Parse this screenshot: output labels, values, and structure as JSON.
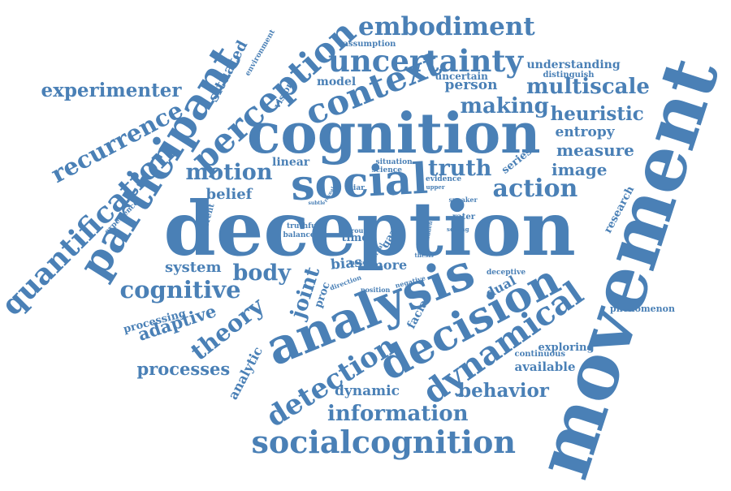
{
  "color": "#4a80b6",
  "words": [
    "deception",
    "cognition",
    "movement",
    "analysis",
    "social",
    "decision",
    "participant",
    "perception",
    "socialcognition",
    "context",
    "dynamical",
    "uncertainty",
    "quantification",
    "embodiment",
    "detection",
    "recurrence",
    "cognitive",
    "information",
    "action",
    "truth",
    "motion",
    "multiscale",
    "experimenter",
    "making",
    "theory",
    "body",
    "heuristic",
    "behavior",
    "measure",
    "image",
    "joint",
    "processes",
    "adaptive",
    "system",
    "belief",
    "entropy",
    "person",
    "dynamic",
    "situated",
    "analytic",
    "dual",
    "model",
    "bias",
    "linear",
    "understanding",
    "uncertain",
    "more",
    "processing",
    "exploring",
    "available",
    "series",
    "facial",
    "research",
    "vision",
    "phenomenon",
    "rater",
    "gaze",
    "proc",
    "time",
    "environment",
    "assumption",
    "distinguish",
    "continuous",
    "different",
    "deceptive",
    "experience",
    "situation",
    "science",
    "evidence",
    "liar",
    "speaker",
    "truthful",
    "balance",
    "route",
    "position",
    "direction",
    "negative",
    "thesis",
    "hidden",
    "setting",
    "upper",
    "maker",
    "verbal",
    "subtle",
    "reveal"
  ]
}
